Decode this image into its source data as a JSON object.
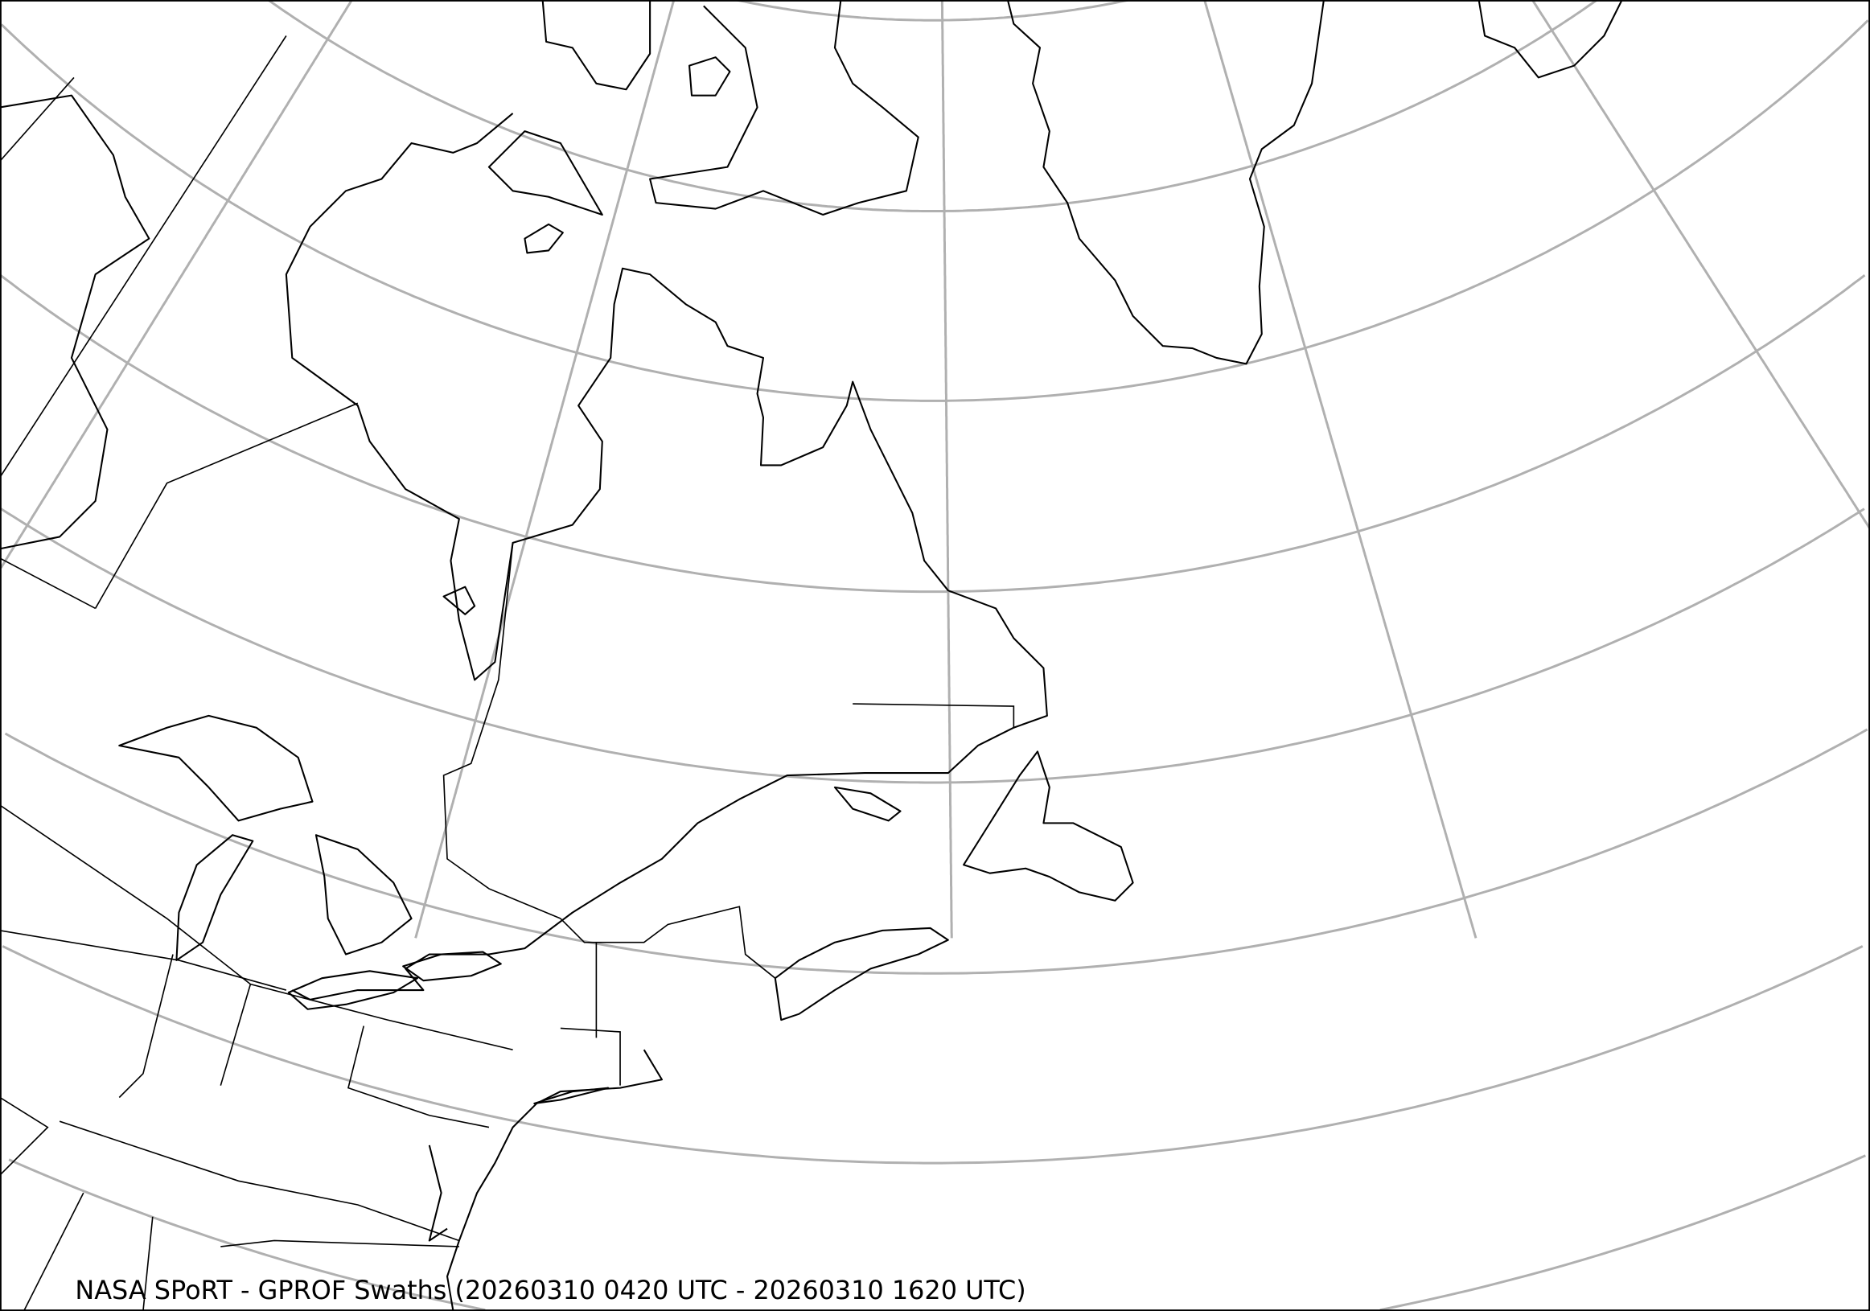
{
  "map": {
    "title": "NASA SPoRT - GPROF Swaths (20260310 0420 UTC - 20260310 1620 UTC)",
    "projection": "lambert-conformal",
    "region": "northeastern North America, Greenland, North Atlantic",
    "gridlines": true,
    "colors": {
      "coastline": "#000000",
      "gridline": "#b0b0b0",
      "background": "#ffffff"
    }
  }
}
